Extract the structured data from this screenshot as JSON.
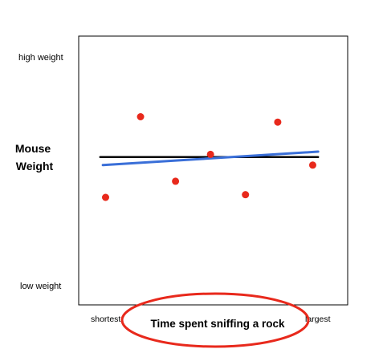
{
  "chart_data": {
    "type": "scatter",
    "title": "",
    "xlabel": "Time spent sniffing a rock",
    "ylabel": "Mouse Weight",
    "ylabel_lines": [
      "Mouse",
      "Weight"
    ],
    "x_tick_labels": {
      "low": "shortest",
      "high": "largest"
    },
    "y_tick_labels": {
      "high": "high weight",
      "low": "low weight"
    },
    "xlim": [
      0,
      1
    ],
    "ylim": [
      0,
      1
    ],
    "grid": false,
    "legend": "none",
    "points": [
      {
        "x": 0.1,
        "y": 0.4
      },
      {
        "x": 0.23,
        "y": 0.7
      },
      {
        "x": 0.36,
        "y": 0.46
      },
      {
        "x": 0.49,
        "y": 0.56
      },
      {
        "x": 0.62,
        "y": 0.41
      },
      {
        "x": 0.74,
        "y": 0.68
      },
      {
        "x": 0.87,
        "y": 0.52
      }
    ],
    "lines": [
      {
        "kind": "mean",
        "x": [
          0.08,
          0.89
        ],
        "y": [
          0.55,
          0.55
        ],
        "color": "#000000"
      },
      {
        "kind": "least-squares-fit",
        "x": [
          0.09,
          0.89
        ],
        "y": [
          0.52,
          0.57
        ],
        "color": "#3a6fd8"
      }
    ],
    "annotation": {
      "shape": "ellipse",
      "around": "xlabel",
      "color": "#e8291c"
    },
    "colors": {
      "points": "#e8291c",
      "frame": "#000000"
    }
  }
}
